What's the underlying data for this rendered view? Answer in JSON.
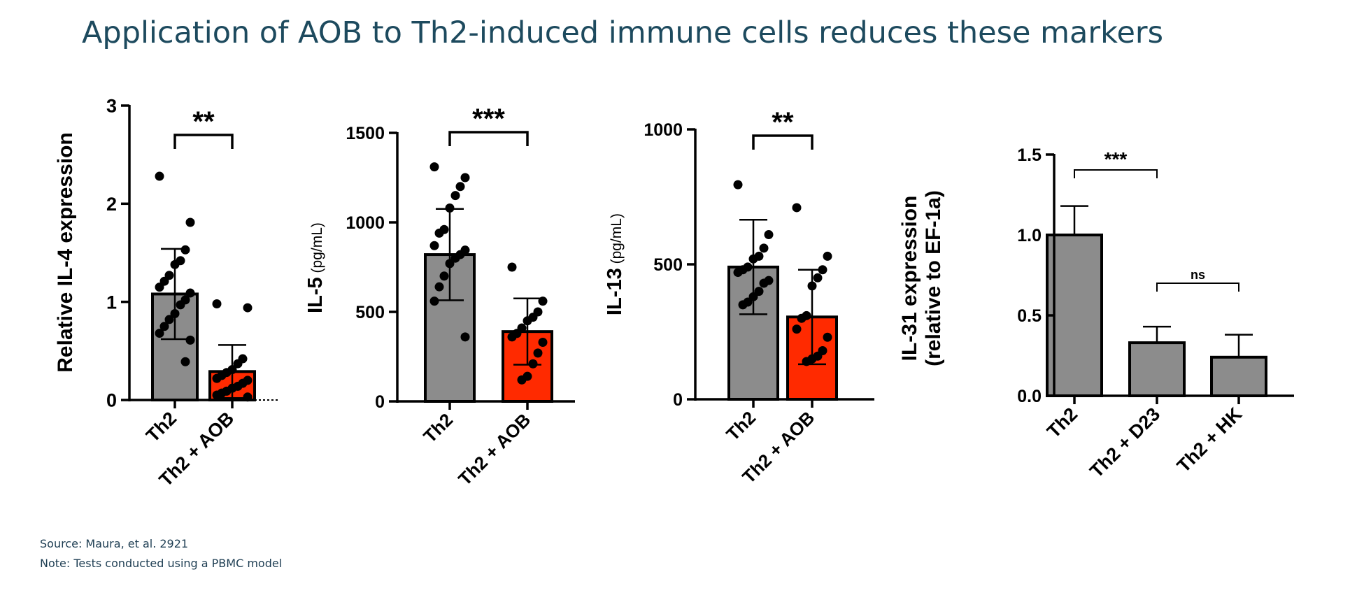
{
  "title": "Application of AOB to Th2-induced immune cells reduces these markers",
  "footnotes": {
    "source": "Source: Maura, et al. 2921",
    "note": "Note: Tests conducted using a PBMC model"
  },
  "colors": {
    "gray_bar": "#8c8c8c",
    "red_bar": "#ff2a00",
    "ink": "#000000",
    "title": "#1d4a5e"
  },
  "chart_data": [
    {
      "type": "bar",
      "ylabel": "Relative IL-4 expression",
      "ylabel_unit": "",
      "ylim": [
        0,
        3
      ],
      "yticks": [
        0,
        1,
        2,
        3
      ],
      "categories": [
        "Th2",
        "Th2 + AOB"
      ],
      "values": [
        1.08,
        0.29
      ],
      "errors": [
        0.46,
        0.27
      ],
      "bar_colors": [
        "#8c8c8c",
        "#ff2a00"
      ],
      "points": [
        [
          2.28,
          1.81,
          1.53,
          1.42,
          1.38,
          1.27,
          1.21,
          1.15,
          1.09,
          1.02,
          0.97,
          0.88,
          0.82,
          0.75,
          0.68,
          0.61,
          0.39
        ],
        [
          0.98,
          0.94,
          0.42,
          0.37,
          0.31,
          0.28,
          0.25,
          0.22,
          0.2,
          0.17,
          0.14,
          0.12,
          0.09,
          0.07,
          0.05,
          0.03
        ]
      ],
      "significance": [
        {
          "from": 0,
          "to": 1,
          "label": "**"
        }
      ],
      "baseline_dotted": true
    },
    {
      "type": "bar",
      "ylabel": "IL-5",
      "ylabel_unit": "(pg/mL)",
      "ylim": [
        0,
        1500
      ],
      "yticks": [
        0,
        500,
        1000,
        1500
      ],
      "categories": [
        "Th2",
        "Th2 + AOB"
      ],
      "values": [
        820,
        390
      ],
      "errors": [
        255,
        185
      ],
      "bar_colors": [
        "#8c8c8c",
        "#ff2a00"
      ],
      "points": [
        [
          1310,
          1250,
          1200,
          1150,
          1080,
          960,
          940,
          870,
          845,
          820,
          800,
          770,
          700,
          640,
          560,
          360
        ],
        [
          750,
          560,
          500,
          470,
          450,
          410,
          380,
          360,
          330,
          270,
          210,
          140,
          120
        ]
      ],
      "significance": [
        {
          "from": 0,
          "to": 1,
          "label": "***"
        }
      ],
      "baseline_dotted": false
    },
    {
      "type": "bar",
      "ylabel": "IL-13",
      "ylabel_unit": "(pg/mL)",
      "ylim": [
        0,
        1000
      ],
      "yticks": [
        0,
        500,
        1000
      ],
      "categories": [
        "Th2",
        "Th2 + AOB"
      ],
      "values": [
        490,
        305
      ],
      "errors": [
        175,
        175
      ],
      "bar_colors": [
        "#8c8c8c",
        "#ff2a00"
      ],
      "points": [
        [
          795,
          610,
          560,
          530,
          520,
          490,
          480,
          470,
          440,
          430,
          400,
          380,
          360,
          350
        ],
        [
          710,
          530,
          480,
          450,
          420,
          310,
          300,
          260,
          230,
          180,
          160,
          150,
          140
        ]
      ],
      "significance": [
        {
          "from": 0,
          "to": 1,
          "label": "**"
        }
      ],
      "baseline_dotted": false
    },
    {
      "type": "bar",
      "ylabel": "IL-31 expression",
      "ylabel_line2": "(relative to EF-1a)",
      "ylim": [
        0,
        1.5
      ],
      "yticks": [
        "0.0",
        "0.5",
        "1.0",
        "1.5"
      ],
      "categories": [
        "Th2",
        "Th2 + D23",
        "Th2 + HK"
      ],
      "values": [
        1.0,
        0.33,
        0.24
      ],
      "errors": [
        0.18,
        0.1,
        0.14
      ],
      "bar_colors": [
        "#8c8c8c",
        "#8c8c8c",
        "#8c8c8c"
      ],
      "points": [],
      "significance": [
        {
          "from": 0,
          "to": 1,
          "label": "***"
        },
        {
          "from": 1,
          "to": 2,
          "label": "ns"
        }
      ],
      "baseline_dotted": false
    }
  ]
}
